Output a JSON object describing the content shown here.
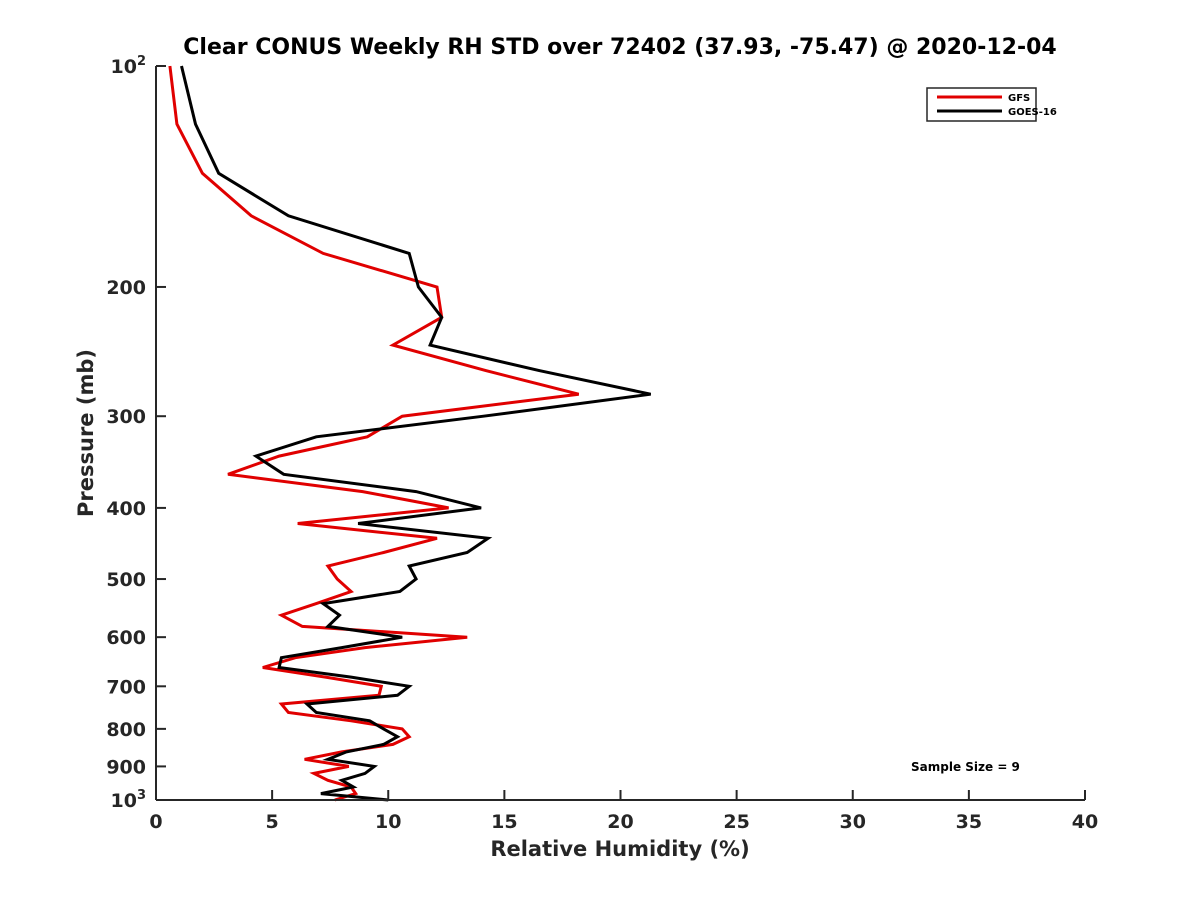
{
  "chart_data": {
    "type": "line",
    "title": "Clear CONUS Weekly RH STD over 72402 (37.93, -75.47) @ 2020-12-04",
    "xlabel": "Relative Humidity (%)",
    "ylabel": "Pressure (mb)",
    "xlim": [
      0,
      40
    ],
    "ylim": [
      100,
      1000
    ],
    "yscale": "log",
    "yreverse": true,
    "grid": false,
    "legend_position": "top-right",
    "x_ticks": [
      0,
      5,
      10,
      15,
      20,
      25,
      30,
      35,
      40
    ],
    "x_tick_labels": [
      "0",
      "5",
      "10",
      "15",
      "20",
      "25",
      "30",
      "35",
      "40"
    ],
    "y_ticks": [
      100,
      200,
      300,
      400,
      500,
      600,
      700,
      800,
      900,
      1000
    ],
    "y_tick_labels": [
      {
        "base": "10",
        "sup": "2"
      },
      {
        "base": "200"
      },
      {
        "base": "300"
      },
      {
        "base": "400"
      },
      {
        "base": "500"
      },
      {
        "base": "600"
      },
      {
        "base": "700"
      },
      {
        "base": "800"
      },
      {
        "base": "900"
      },
      {
        "base": "10",
        "sup": "3"
      }
    ],
    "pressure_levels": [
      100,
      120,
      140,
      160,
      180,
      200,
      220,
      240,
      260,
      280,
      300,
      320,
      340,
      360,
      380,
      400,
      420,
      440,
      460,
      480,
      500,
      520,
      540,
      560,
      580,
      600,
      620,
      640,
      660,
      680,
      700,
      720,
      740,
      760,
      780,
      800,
      820,
      840,
      860,
      880,
      900,
      920,
      940,
      960,
      980,
      1000
    ],
    "series": [
      {
        "name": "GFS",
        "color": "#e00000",
        "values": [
          0.6,
          0.9,
          2.0,
          4.1,
          7.2,
          12.1,
          12.3,
          10.2,
          14.2,
          18.2,
          10.6,
          9.1,
          5.3,
          3.1,
          8.9,
          12.6,
          6.1,
          12.1,
          9.8,
          7.4,
          7.8,
          8.4,
          6.9,
          5.4,
          6.3,
          13.4,
          9.0,
          6.0,
          4.6,
          7.3,
          9.7,
          9.6,
          5.4,
          5.7,
          8.4,
          10.6,
          10.9,
          10.2,
          8.0,
          6.4,
          8.3,
          6.8,
          7.4,
          8.4,
          8.6,
          7.7
        ]
      },
      {
        "name": "GOES-16",
        "color": "#000000",
        "values": [
          1.1,
          1.7,
          2.7,
          5.7,
          10.9,
          11.3,
          12.3,
          11.8,
          16.5,
          21.3,
          14.1,
          6.9,
          4.3,
          5.5,
          11.2,
          14.0,
          8.7,
          14.3,
          13.4,
          10.9,
          11.2,
          10.5,
          7.2,
          7.9,
          7.4,
          10.6,
          8.0,
          5.4,
          5.3,
          8.4,
          10.9,
          10.4,
          6.5,
          6.9,
          9.2,
          9.8,
          10.4,
          9.8,
          8.2,
          7.4,
          9.4,
          9.0,
          8.0,
          8.5,
          7.1,
          10.0
        ]
      }
    ],
    "annotations": [
      "Sample Size = 9"
    ]
  }
}
